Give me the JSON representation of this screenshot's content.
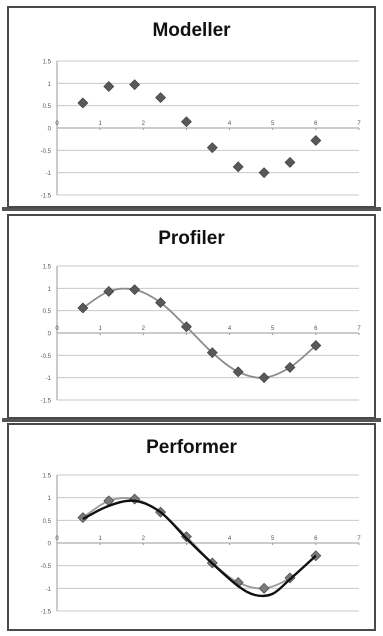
{
  "chart_data": [
    {
      "type": "scatter",
      "title": "Modeller",
      "xlim": [
        0,
        7
      ],
      "ylim": [
        -1.5,
        1.5
      ],
      "x_ticks": [
        "0",
        "1",
        "2",
        "3",
        "4",
        "5",
        "6",
        "7"
      ],
      "y_ticks": [
        "1.5",
        "1",
        "0.5",
        "0",
        "-0.5",
        "-1",
        "-1.5"
      ],
      "grid": true,
      "series": [
        {
          "marker": "diamond",
          "color": "#595959",
          "x": [
            0.6,
            1.2,
            1.8,
            2.4,
            3.0,
            3.6,
            4.2,
            4.8,
            5.4,
            6.0
          ],
          "y": [
            0.56,
            0.93,
            0.97,
            0.68,
            0.14,
            -0.44,
            -0.87,
            -1.0,
            -0.77,
            -0.28
          ]
        }
      ]
    },
    {
      "type": "scatter",
      "title": "Profiler",
      "xlim": [
        0,
        7
      ],
      "ylim": [
        -1.5,
        1.5
      ],
      "x_ticks": [
        "0",
        "1",
        "2",
        "3",
        "4",
        "5",
        "6",
        "7"
      ],
      "y_ticks": [
        "1.5",
        "1",
        "0.5",
        "0",
        "-0.5",
        "-1",
        "-1.5"
      ],
      "grid": true,
      "series": [
        {
          "marker": "diamond",
          "color": "#595959",
          "smooth_line": true,
          "line_color": "#8c8c8c",
          "x": [
            0.6,
            1.2,
            1.8,
            2.4,
            3.0,
            3.6,
            4.2,
            4.8,
            5.4,
            6.0
          ],
          "y": [
            0.56,
            0.93,
            0.97,
            0.68,
            0.14,
            -0.44,
            -0.87,
            -1.0,
            -0.77,
            -0.28
          ]
        }
      ]
    },
    {
      "type": "scatter",
      "title": "Performer",
      "xlim": [
        0,
        7
      ],
      "ylim": [
        -1.5,
        1.5
      ],
      "x_ticks": [
        "0",
        "1",
        "2",
        "3",
        "4",
        "5",
        "6",
        "7"
      ],
      "y_ticks": [
        "1.5",
        "1",
        "0.5",
        "0",
        "-0.5",
        "-1",
        "-1.5"
      ],
      "grid": true,
      "series": [
        {
          "marker": "diamond",
          "color": "#7a7a7a",
          "smooth_line": true,
          "line_color": "#9a9a9a",
          "x": [
            0.6,
            1.2,
            1.8,
            2.4,
            3.0,
            3.6,
            4.2,
            4.8,
            5.4,
            6.0
          ],
          "y": [
            0.56,
            0.93,
            0.97,
            0.68,
            0.14,
            -0.44,
            -0.87,
            -1.0,
            -0.77,
            -0.28
          ]
        },
        {
          "type": "line",
          "color": "#111111",
          "x": [
            0.6,
            1.2,
            1.8,
            2.4,
            3.0,
            3.6,
            4.2,
            4.6,
            5.0,
            5.4,
            6.0
          ],
          "y": [
            0.53,
            0.82,
            0.93,
            0.68,
            0.1,
            -0.45,
            -0.95,
            -1.15,
            -1.12,
            -0.8,
            -0.28
          ]
        }
      ]
    }
  ]
}
